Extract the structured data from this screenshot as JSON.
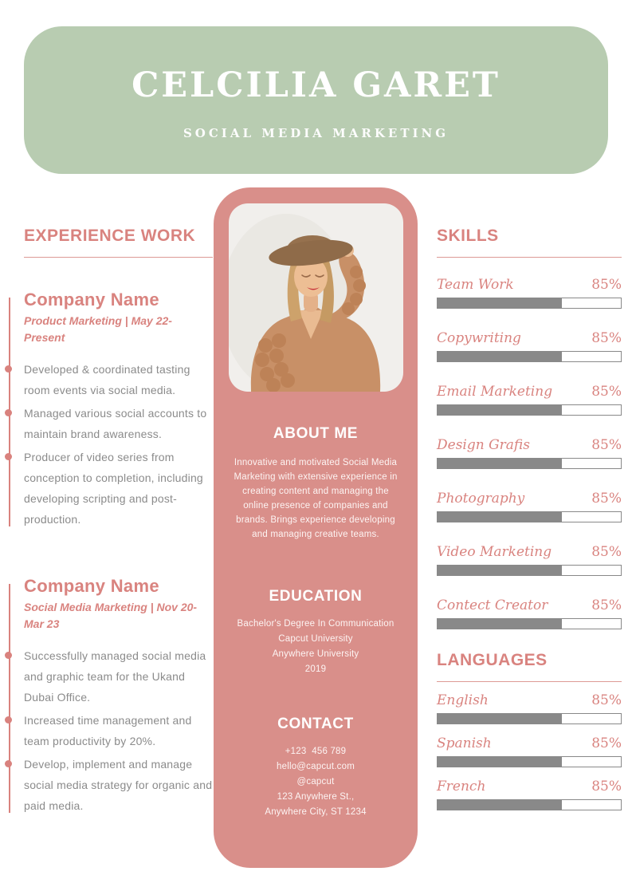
{
  "header": {
    "name": "CELCILIA GARET",
    "subtitle": "SOCIAL MEDIA MARKETING"
  },
  "experience": {
    "title": "EXPERIENCE WORK",
    "jobs": [
      {
        "company": "Company Name",
        "meta": "Product Marketing | May 22-Present",
        "bullets": [
          "Developed & coordinated tasting room events via social media.",
          "Managed various social accounts to maintain brand awareness.",
          "Producer of video series from conception to completion, including developing scripting and post-production."
        ]
      },
      {
        "company": "Company Name",
        "meta": "Social Media Marketing | Nov 20-Mar 23",
        "bullets": [
          "Successfully managed social media and graphic team for the Ukand Dubai Office.",
          "Increased time management and team productivity by 20%.",
          "Develop, implement and manage social media strategy for organic and paid media."
        ]
      }
    ]
  },
  "profile": {
    "photo_description": "woman in brown hat and knit cardigan",
    "about": {
      "title": "ABOUT ME",
      "text": "Innovative and motivated Social Media Marketing with extensive experience in creating content and managing the online presence of companies and brands. Brings experience developing and managing creative teams."
    },
    "education": {
      "title": "EDUCATION",
      "lines": "Bachelor's Degree In Communication\nCapcut University\nAnywhere University\n2019"
    },
    "contact": {
      "title": "CONTACT",
      "lines": "+123  456 789\nhello@capcut.com\n@capcut\n123 Anywhere St.,\nAnywhere City, ST 1234"
    }
  },
  "skills": {
    "title": "SKILLS",
    "items": [
      {
        "label": "Team Work",
        "percent": "85%",
        "fill": 68
      },
      {
        "label": "Copywriting",
        "percent": "85%",
        "fill": 68
      },
      {
        "label": "Email Marketing",
        "percent": "85%",
        "fill": 68
      },
      {
        "label": "Design Grafis",
        "percent": "85%",
        "fill": 68
      },
      {
        "label": "Photography",
        "percent": "85%",
        "fill": 68
      },
      {
        "label": "Video Marketing",
        "percent": "85%",
        "fill": 68
      },
      {
        "label": "Contect Creator",
        "percent": "85%",
        "fill": 68
      }
    ]
  },
  "languages": {
    "title": "LANGUAGES",
    "items": [
      {
        "label": "English",
        "percent": "85%",
        "fill": 68
      },
      {
        "label": "Spanish",
        "percent": "85%",
        "fill": 68
      },
      {
        "label": "French",
        "percent": "85%",
        "fill": 68
      }
    ]
  },
  "colors": {
    "green": "#b8ccb1",
    "pink-panel": "#d98f8a",
    "accent": "#d9837f",
    "pink-line": "#d9827e",
    "text-gray": "#8b8b8b",
    "bar-gray": "#898989"
  }
}
